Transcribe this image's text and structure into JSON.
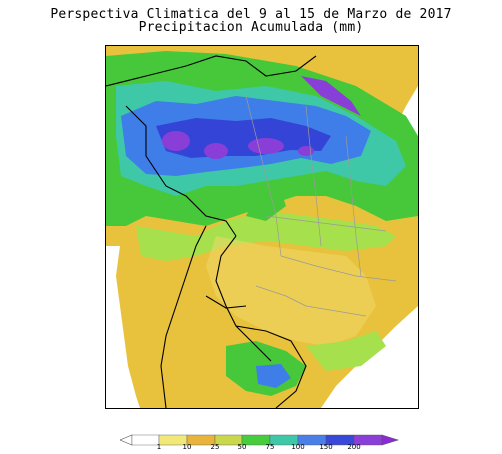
{
  "title": {
    "line1": "Perspectiva Climatica del 9 al 15 de Marzo de 2017",
    "line2": "Precipitacion Acumulada (mm)"
  },
  "legend": {
    "ticks": [
      "1",
      "10",
      "25",
      "50",
      "75",
      "100",
      "150",
      "200"
    ],
    "colors": [
      "#ffffff",
      "#f2e87a",
      "#e8b43c",
      "#d4a233",
      "#a7e04f",
      "#46cc3c",
      "#3fc8a8",
      "#4a7fe8",
      "#3848d8",
      "#8a3fd8",
      "#8a2ad8"
    ]
  },
  "palette": {
    "dry": "#e8c23c",
    "light": "#f0d868",
    "green_light": "#a6e04c",
    "green": "#46c83a",
    "teal": "#3ec8a8",
    "blue": "#3f7ee8",
    "blue_dark": "#3444d6",
    "purple": "#8a3ed8",
    "ocean": "#ffffff",
    "borders": "#000000",
    "states": "#9a9a9a"
  }
}
